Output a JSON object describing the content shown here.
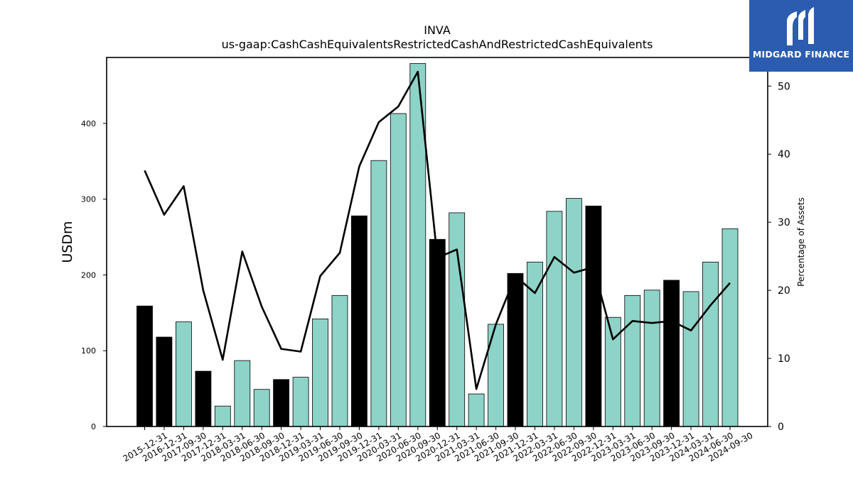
{
  "chart_data": {
    "type": "bar+line",
    "title": "INVA",
    "subtitle": "us-gaap:CashCashEquivalentsRestrictedCashAndRestrictedCashEquivalents",
    "ylabel_left": "USDm",
    "ylabel_right": "Percentage of Assets",
    "ylim_left": [
      0,
      487
    ],
    "ylim_right": [
      0,
      54.2
    ],
    "yticks_left": [
      "0",
      "100",
      "200",
      "300",
      "400"
    ],
    "yticks_right": [
      "0",
      "10",
      "20",
      "30",
      "40",
      "50"
    ],
    "categories": [
      "2015-12-31",
      "2016-12-31",
      "2017-09-30",
      "2017-12-31",
      "2018-03-31",
      "2018-06-30",
      "2018-09-30",
      "2018-12-31",
      "2019-03-31",
      "2019-06-30",
      "2019-09-30",
      "2019-12-31",
      "2020-03-31",
      "2020-06-30",
      "2020-09-30",
      "2020-12-31",
      "2021-03-31",
      "2021-06-30",
      "2021-09-30",
      "2021-12-31",
      "2022-03-31",
      "2022-06-30",
      "2022-09-30",
      "2022-12-31",
      "2023-03-31",
      "2023-06-30",
      "2023-09-30",
      "2023-12-31",
      "2024-03-31",
      "2024-06-30",
      "2024-09-30"
    ],
    "bars": [
      159,
      118,
      138,
      73,
      27,
      87,
      49,
      62,
      65,
      142,
      173,
      278,
      351,
      413,
      479,
      247,
      282,
      43,
      135,
      202,
      217,
      284,
      301,
      291,
      144,
      173,
      180,
      193,
      178,
      217,
      261
    ],
    "bar_is_year_end": [
      true,
      true,
      false,
      true,
      false,
      false,
      false,
      true,
      false,
      false,
      false,
      true,
      false,
      false,
      false,
      true,
      false,
      false,
      false,
      true,
      false,
      false,
      false,
      true,
      false,
      false,
      false,
      true,
      false,
      false,
      false
    ],
    "line_percent": [
      37.6,
      31.1,
      35.3,
      20.0,
      9.8,
      25.7,
      17.6,
      11.4,
      11.0,
      22.1,
      25.5,
      38.2,
      44.7,
      47.0,
      52.1,
      24.8,
      26.0,
      5.5,
      15.0,
      22.1,
      19.6,
      24.9,
      22.6,
      23.4,
      12.8,
      15.5,
      15.2,
      15.5,
      14.1,
      17.8,
      21.1
    ],
    "colors": {
      "year_end_bar": "#000000",
      "quarter_bar": "#8dd3c7",
      "line": "#000000"
    }
  },
  "logo": {
    "text": "MIDGARD FINANCE",
    "background": "#2b5cb0"
  }
}
